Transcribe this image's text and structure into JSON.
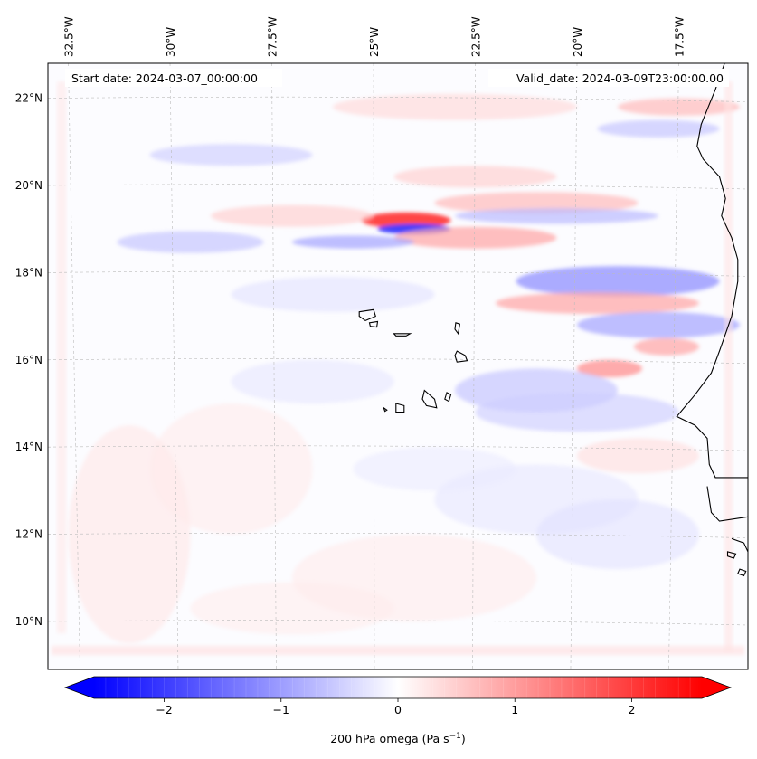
{
  "map": {
    "annotations": {
      "start": "Start date: 2024-03-07_00:00:00",
      "valid": "Valid_date: 2024-03-09T23:00:00.00"
    },
    "extent": {
      "lon_west": -33.0,
      "lon_east": -15.8,
      "lat_south": 8.9,
      "lat_north": 22.8
    },
    "lon_ticks": [
      {
        "value": -32.5,
        "label": "32.5°W"
      },
      {
        "value": -30.0,
        "label": "30°W"
      },
      {
        "value": -27.5,
        "label": "27.5°W"
      },
      {
        "value": -25.0,
        "label": "25°W"
      },
      {
        "value": -22.5,
        "label": "22.5°W"
      },
      {
        "value": -20.0,
        "label": "20°W"
      },
      {
        "value": -17.5,
        "label": "17.5°W"
      }
    ],
    "lat_ticks": [
      {
        "value": 22,
        "label": "22°N"
      },
      {
        "value": 20,
        "label": "20°N"
      },
      {
        "value": 18,
        "label": "18°N"
      },
      {
        "value": 16,
        "label": "16°N"
      },
      {
        "value": 14,
        "label": "14°N"
      },
      {
        "value": 12,
        "label": "12°N"
      },
      {
        "value": 10,
        "label": "10°N"
      }
    ],
    "field": {
      "name": "200 hPa omega",
      "blobs": [
        {
          "lon": -24.2,
          "lat": 19.2,
          "rlon": 1.1,
          "rlat": 0.18,
          "v": 2.0
        },
        {
          "lon": -24.0,
          "lat": 19.0,
          "rlon": 0.9,
          "rlat": 0.12,
          "v": -2.0
        },
        {
          "lon": -22.5,
          "lat": 18.8,
          "rlon": 2.0,
          "rlat": 0.25,
          "v": 0.9
        },
        {
          "lon": -25.5,
          "lat": 18.7,
          "rlon": 1.5,
          "rlat": 0.15,
          "v": -0.9
        },
        {
          "lon": -21.0,
          "lat": 19.6,
          "rlon": 2.5,
          "rlat": 0.25,
          "v": 0.7
        },
        {
          "lon": -20.5,
          "lat": 19.3,
          "rlon": 2.5,
          "rlat": 0.18,
          "v": -0.7
        },
        {
          "lon": -29.5,
          "lat": 18.7,
          "rlon": 1.8,
          "rlat": 0.25,
          "v": -0.6
        },
        {
          "lon": -27.0,
          "lat": 19.3,
          "rlon": 2.0,
          "rlat": 0.25,
          "v": 0.5
        },
        {
          "lon": -19.0,
          "lat": 17.8,
          "rlon": 2.5,
          "rlat": 0.35,
          "v": -1.1
        },
        {
          "lon": -19.5,
          "lat": 17.3,
          "rlon": 2.5,
          "rlat": 0.25,
          "v": 0.9
        },
        {
          "lon": -18.0,
          "lat": 16.8,
          "rlon": 2.0,
          "rlat": 0.3,
          "v": -0.9
        },
        {
          "lon": -19.2,
          "lat": 15.8,
          "rlon": 0.8,
          "rlat": 0.2,
          "v": 1.1
        },
        {
          "lon": -21.0,
          "lat": 15.3,
          "rlon": 2.0,
          "rlat": 0.5,
          "v": -0.6
        },
        {
          "lon": -20.0,
          "lat": 14.8,
          "rlon": 2.5,
          "rlat": 0.45,
          "v": -0.5
        },
        {
          "lon": -17.5,
          "lat": 21.8,
          "rlon": 1.5,
          "rlat": 0.2,
          "v": 0.7
        },
        {
          "lon": -18.0,
          "lat": 21.3,
          "rlon": 1.5,
          "rlat": 0.2,
          "v": -0.6
        },
        {
          "lon": -23.0,
          "lat": 21.8,
          "rlon": 3.0,
          "rlat": 0.3,
          "v": 0.4
        },
        {
          "lon": -28.5,
          "lat": 20.7,
          "rlon": 2.0,
          "rlat": 0.25,
          "v": -0.5
        },
        {
          "lon": -22.5,
          "lat": 20.2,
          "rlon": 2.0,
          "rlat": 0.25,
          "v": 0.5
        },
        {
          "lon": -26.0,
          "lat": 17.5,
          "rlon": 2.5,
          "rlat": 0.4,
          "v": -0.3
        },
        {
          "lon": -31.0,
          "lat": 12.0,
          "rlon": 1.5,
          "rlat": 2.5,
          "v": 0.25
        },
        {
          "lon": -28.5,
          "lat": 13.5,
          "rlon": 2.0,
          "rlat": 1.5,
          "v": 0.2
        },
        {
          "lon": -24.0,
          "lat": 11.0,
          "rlon": 3.0,
          "rlat": 1.0,
          "v": 0.2
        },
        {
          "lon": -21.0,
          "lat": 12.8,
          "rlon": 2.5,
          "rlat": 0.8,
          "v": -0.25
        },
        {
          "lon": -19.0,
          "lat": 12.0,
          "rlon": 2.0,
          "rlat": 0.8,
          "v": -0.3
        },
        {
          "lon": -26.5,
          "lat": 15.5,
          "rlon": 2.0,
          "rlat": 0.5,
          "v": -0.25
        },
        {
          "lon": -18.5,
          "lat": 13.8,
          "rlon": 1.5,
          "rlat": 0.4,
          "v": 0.35
        },
        {
          "lon": -17.8,
          "lat": 16.3,
          "rlon": 0.8,
          "rlat": 0.2,
          "v": 0.9
        },
        {
          "lon": -23.5,
          "lat": 13.5,
          "rlon": 2.0,
          "rlat": 0.5,
          "v": -0.2
        },
        {
          "lon": -27.0,
          "lat": 10.3,
          "rlon": 2.5,
          "rlat": 0.6,
          "v": 0.18
        }
      ]
    },
    "coastline_color": "#000000"
  },
  "colorbar": {
    "title": "200 hPa omega (Pa s",
    "title_exp": "−1",
    "title_close": ")",
    "vmin": -2.6,
    "vmax": 2.6,
    "ticks": [
      {
        "value": -2,
        "label": "−2"
      },
      {
        "value": -1,
        "label": "−1"
      },
      {
        "value": 0,
        "label": "0"
      },
      {
        "value": 1,
        "label": "1"
      },
      {
        "value": 2,
        "label": "2"
      }
    ],
    "colors": {
      "low": "#0000ff",
      "mid": "#ffffff",
      "high": "#ff0000"
    }
  }
}
